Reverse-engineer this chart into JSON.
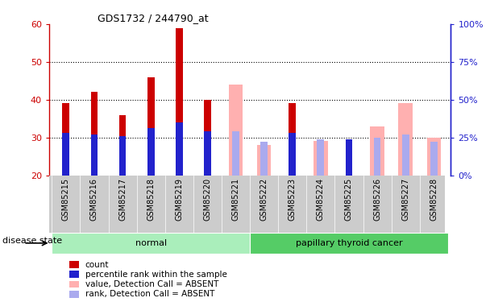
{
  "title": "GDS1732 / 244790_at",
  "samples": [
    "GSM85215",
    "GSM85216",
    "GSM85217",
    "GSM85218",
    "GSM85219",
    "GSM85220",
    "GSM85221",
    "GSM85222",
    "GSM85223",
    "GSM85224",
    "GSM85225",
    "GSM85226",
    "GSM85227",
    "GSM85228"
  ],
  "ylim_left": [
    20,
    60
  ],
  "ylim_right": [
    0,
    100
  ],
  "yticks_left": [
    20,
    30,
    40,
    50,
    60
  ],
  "yticks_right": [
    0,
    25,
    50,
    75,
    100
  ],
  "yticklabels_right": [
    "0%",
    "25%",
    "50%",
    "75%",
    "100%"
  ],
  "red_values": [
    39,
    42,
    36,
    46,
    59,
    40,
    null,
    null,
    39,
    null,
    29,
    null,
    null,
    null
  ],
  "blue_values": [
    28,
    27,
    26,
    31,
    35,
    29,
    null,
    null,
    28,
    null,
    24,
    null,
    null,
    null
  ],
  "pink_values": [
    null,
    null,
    null,
    null,
    null,
    null,
    44,
    28,
    null,
    29,
    null,
    33,
    39,
    30
  ],
  "lavender_values": [
    null,
    null,
    null,
    null,
    null,
    null,
    29,
    22,
    null,
    24,
    null,
    25,
    27,
    22
  ],
  "red_color": "#cc0000",
  "blue_color": "#2222cc",
  "pink_color": "#ffb0b0",
  "lavender_color": "#aaaaee",
  "xtick_bg": "#cccccc",
  "groups": [
    {
      "label": "normal",
      "start": 0,
      "end": 7,
      "color": "#aaeebb"
    },
    {
      "label": "papillary thyroid cancer",
      "start": 7,
      "end": 14,
      "color": "#55cc66"
    }
  ],
  "disease_label": "disease state",
  "legend_items": [
    {
      "color": "#cc0000",
      "label": "count"
    },
    {
      "color": "#2222cc",
      "label": "percentile rank within the sample"
    },
    {
      "color": "#ffb0b0",
      "label": "value, Detection Call = ABSENT"
    },
    {
      "color": "#aaaaee",
      "label": "rank, Detection Call = ABSENT"
    }
  ]
}
